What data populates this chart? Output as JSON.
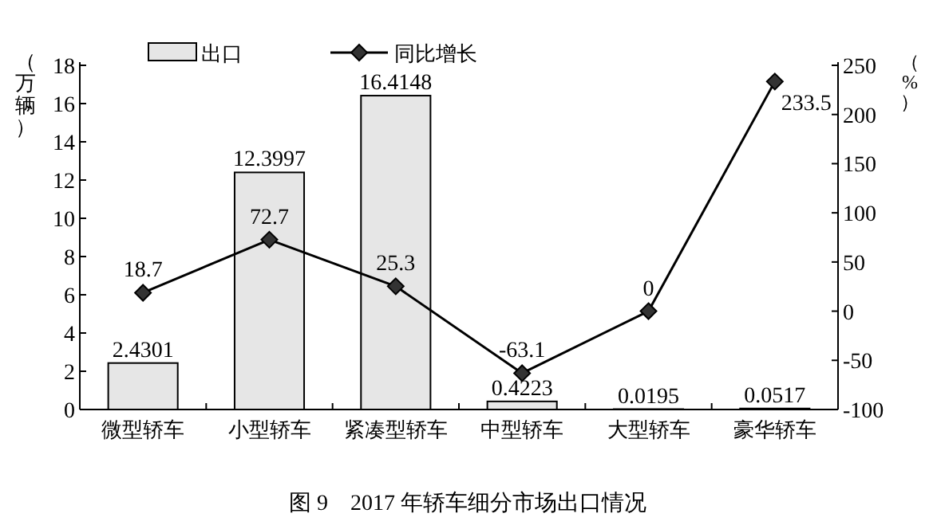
{
  "chart_data": {
    "type": "bar",
    "title": "图 9　2017 年轿车细分市场出口情况",
    "ylabel": "（万辆）",
    "y2label": "（%）",
    "categories": [
      "微型轿车",
      "小型轿车",
      "紧凑型轿车",
      "中型轿车",
      "大型轿车",
      "豪华轿车"
    ],
    "series": [
      {
        "name": "出口",
        "color": "#e6e6e6",
        "values": [
          2.4301,
          12.3997,
          16.4148,
          0.4223,
          0.0195,
          0.0517
        ]
      },
      {
        "name": "同比增长",
        "type": "line",
        "axis": "y2",
        "color": "#000000",
        "marker": "diamond",
        "values": [
          18.7,
          72.7,
          25.3,
          -63.1,
          0,
          233.5
        ]
      }
    ],
    "ylim": [
      0,
      18
    ],
    "yticks": [
      0,
      2,
      4,
      6,
      8,
      10,
      12,
      14,
      16,
      18
    ],
    "y2lim": [
      -100,
      250
    ],
    "y2ticks": [
      -100,
      -50,
      0,
      50,
      100,
      150,
      200,
      250
    ],
    "data_labels": true,
    "legend": "top",
    "grid": false
  }
}
